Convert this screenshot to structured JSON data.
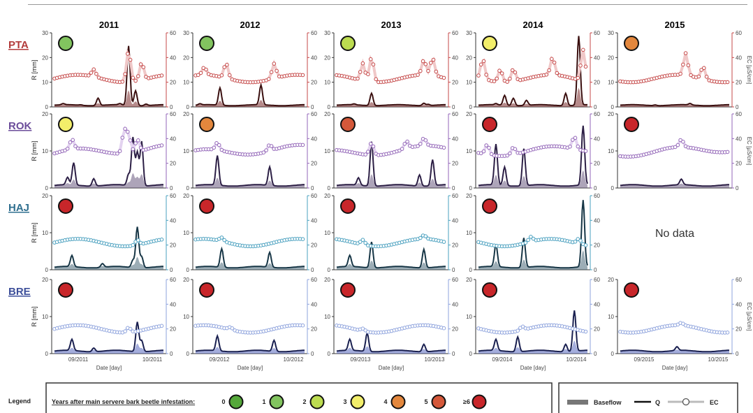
{
  "chart_data": {
    "type": "line",
    "years": [
      "2011",
      "2012",
      "2013",
      "2014",
      "2015"
    ],
    "sites": [
      {
        "name": "PTA",
        "color": "#b23a3a",
        "rlim": [
          0,
          30
        ],
        "rticks": [
          "0",
          "10",
          "20",
          "30"
        ],
        "eclim": [
          0,
          60
        ],
        "ecticks": [
          "0",
          "20",
          "40",
          "60"
        ],
        "eclabel": "EC [µS/cm]",
        "eccolor": "#c54848",
        "ecfill": "#f0c8c8",
        "qcolor": "#3a0f0f",
        "basecolor": "#7a2a2a"
      },
      {
        "name": "ROK",
        "color": "#6b4c9a",
        "rlim": [
          0,
          20
        ],
        "rticks": [
          "0",
          "10",
          "20"
        ],
        "eclim": [
          0,
          60
        ],
        "ecticks": [
          "0",
          "20",
          "40",
          "60"
        ],
        "eclabel": "EC [µS/cm]",
        "eccolor": "#9366b8",
        "ecfill": "#e3d3f0",
        "qcolor": "#2c1f45",
        "basecolor": "#6a5a80"
      },
      {
        "name": "HAJ",
        "color": "#2f6f8f",
        "rlim": [
          0,
          20
        ],
        "rticks": [
          "0",
          "10",
          "20"
        ],
        "eclim": [
          0,
          60
        ],
        "ecticks": [
          "0",
          "20",
          "40",
          "60"
        ],
        "eclabel": "",
        "eccolor": "#4aa0bf",
        "ecfill": "#cde6f0",
        "qcolor": "#173646",
        "basecolor": "#4a6a7a"
      },
      {
        "name": "BRE",
        "color": "#3d4f9a",
        "rlim": [
          0,
          20
        ],
        "rticks": [
          "0",
          "10",
          "20"
        ],
        "eclim": [
          0,
          60
        ],
        "ecticks": [
          "0",
          "20",
          "40",
          "60"
        ],
        "eclabel": "EC [µS/cm]",
        "eccolor": "#8ea3dd",
        "ecfill": "#d8dff5",
        "qcolor": "#1a2050",
        "basecolor": "#5a6ac0"
      }
    ],
    "infestation_class": [
      [
        "1",
        "1",
        "2",
        "3",
        "4"
      ],
      [
        "3",
        "4",
        "5",
        "≥6",
        "≥6"
      ],
      [
        "≥6",
        "≥6",
        "≥6",
        "≥6",
        null
      ],
      [
        "≥6",
        "≥6",
        "≥6",
        "≥6",
        "≥6"
      ]
    ],
    "no_data_panel": {
      "site": "HAJ",
      "year": "2015",
      "text": "No data"
    },
    "ylabel": "R [mm]",
    "xlabel": "Date [day]",
    "xticks": [
      [
        "09/2011",
        "10/2011"
      ],
      [
        "09/2012",
        "10/2012"
      ],
      [
        "09/2013",
        "10/2013"
      ],
      [
        "09/2014",
        "10/2014"
      ],
      [
        "09/2015",
        "10/2015"
      ]
    ],
    "q_peaks": [
      [
        [
          [
            10,
            0.5
          ],
          [
            30,
            0.2
          ],
          [
            50,
            3
          ],
          [
            75,
            0.5
          ],
          [
            85,
            24
          ],
          [
            93,
            6
          ],
          [
            105,
            0.6
          ]
        ],
        [
          [
            5,
            0.5
          ],
          [
            28,
            7
          ],
          [
            75,
            8
          ]
        ],
        [
          [
            20,
            0.4
          ],
          [
            40,
            5
          ],
          [
            100,
            1
          ],
          [
            105,
            0.5
          ]
        ],
        [
          [
            20,
            0.5
          ],
          [
            30,
            4
          ],
          [
            40,
            3
          ],
          [
            55,
            2
          ],
          [
            100,
            5
          ],
          [
            115,
            28
          ]
        ],
        [
          [
            40,
            0.3
          ],
          [
            80,
            0.6
          ]
        ]
      ],
      [
        [
          [
            15,
            2
          ],
          [
            22,
            6
          ],
          [
            45,
            2
          ],
          [
            85,
            3
          ],
          [
            90,
            13
          ],
          [
            95,
            9
          ],
          [
            100,
            12
          ]
        ],
        [
          [
            25,
            8
          ],
          [
            85,
            5
          ]
        ],
        [
          [
            25,
            2
          ],
          [
            40,
            12
          ],
          [
            95,
            3
          ],
          [
            110,
            7
          ]
        ],
        [
          [
            20,
            11
          ],
          [
            30,
            5
          ],
          [
            52,
            10
          ],
          [
            120,
            16
          ]
        ],
        [
          [
            70,
            1.5
          ]
        ]
      ],
      [
        [
          [
            20,
            3
          ],
          [
            55,
            1
          ],
          [
            90,
            2
          ],
          [
            95,
            11
          ],
          [
            100,
            3
          ]
        ],
        [
          [
            30,
            5
          ],
          [
            85,
            4
          ]
        ],
        [
          [
            15,
            3
          ],
          [
            40,
            7
          ],
          [
            100,
            5
          ]
        ],
        [
          [
            20,
            6
          ],
          [
            52,
            8
          ],
          [
            120,
            18
          ]
        ],
        []
      ],
      [
        [
          [
            20,
            3
          ],
          [
            45,
            1
          ],
          [
            95,
            8
          ],
          [
            100,
            3
          ]
        ],
        [
          [
            25,
            4
          ],
          [
            90,
            3
          ]
        ],
        [
          [
            15,
            3
          ],
          [
            35,
            5
          ],
          [
            100,
            2
          ]
        ],
        [
          [
            20,
            3
          ],
          [
            45,
            4
          ],
          [
            100,
            2
          ],
          [
            110,
            11
          ]
        ],
        [
          [
            65,
            1
          ]
        ]
      ]
    ],
    "ec_peaks": [
      [
        [
          [
            45,
            6
          ],
          [
            85,
            25
          ],
          [
            100,
            14
          ]
        ],
        [
          [
            10,
            6
          ],
          [
            35,
            12
          ],
          [
            90,
            12
          ]
        ],
        [
          [
            30,
            14
          ],
          [
            40,
            20
          ],
          [
            100,
            12
          ],
          [
            110,
            14
          ]
        ],
        [
          [
            5,
            16
          ],
          [
            25,
            10
          ],
          [
            40,
            10
          ],
          [
            85,
            14
          ],
          [
            120,
            25
          ]
        ],
        [
          [
            75,
            18
          ],
          [
            95,
            10
          ]
        ]
      ],
      [
        [
          [
            20,
            8
          ],
          [
            80,
            18
          ],
          [
            85,
            14
          ],
          [
            95,
            10
          ]
        ],
        [
          [
            25,
            6
          ],
          [
            85,
            5
          ]
        ],
        [
          [
            40,
            10
          ],
          [
            80,
            6
          ],
          [
            100,
            6
          ]
        ],
        [
          [
            10,
            8
          ],
          [
            40,
            6
          ],
          [
            110,
            10
          ]
        ],
        [
          [
            70,
            6
          ]
        ]
      ],
      [
        [
          [
            95,
            4
          ]
        ],
        [
          [
            30,
            3
          ]
        ],
        [
          [
            30,
            4
          ],
          [
            100,
            3
          ]
        ],
        [
          [
            60,
            4
          ],
          [
            115,
            4
          ]
        ],
        []
      ],
      [
        [
          [
            85,
            4
          ]
        ],
        [
          [
            40,
            2
          ]
        ],
        [
          [
            30,
            2
          ]
        ],
        [
          [
            50,
            3
          ]
        ],
        [
          [
            70,
            2
          ]
        ]
      ]
    ],
    "legend": {
      "label": "Legend",
      "title": "Years after main servere bark beetle infestation:",
      "classes": [
        {
          "label": "0",
          "color": "#55a83a"
        },
        {
          "label": "1",
          "color": "#82c45f"
        },
        {
          "label": "2",
          "color": "#bcdc50"
        },
        {
          "label": "3",
          "color": "#f2ee6a"
        },
        {
          "label": "4",
          "color": "#e3873d"
        },
        {
          "label": "5",
          "color": "#d4583a"
        },
        {
          "label": "≥6",
          "color": "#c8262a"
        }
      ],
      "baseflow": "Baseflow",
      "q": "Q",
      "ec": "EC"
    }
  }
}
